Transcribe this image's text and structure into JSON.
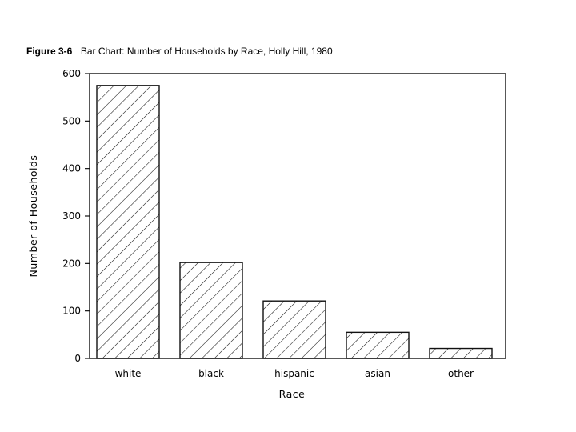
{
  "figure": {
    "label": "Figure  3-6",
    "caption": "Bar Chart: Number of Households by Race, Holly Hill, 1980"
  },
  "chart_data": {
    "type": "bar",
    "title": "Figure 3-6 Bar Chart: Number of Households by Race, Holly Hill, 1980",
    "xlabel": "Race",
    "ylabel": "Number of Households",
    "categories": [
      "white",
      "black",
      "hispanic",
      "asian",
      "other"
    ],
    "values": [
      575,
      202,
      121,
      55,
      21
    ],
    "ylim": [
      0,
      600
    ],
    "yticks": [
      0,
      100,
      200,
      300,
      400,
      500,
      600
    ],
    "bar_fill": "diagonal-hatch",
    "bar_color": "#111111",
    "grid": false,
    "legend": "none"
  }
}
